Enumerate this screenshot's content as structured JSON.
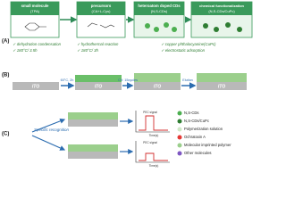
{
  "panel_a": {
    "label": "(A)",
    "steps": [
      {
        "title": "small molecule",
        "subtitle": "(TPA)"
      },
      {
        "title": "precursors",
        "subtitle": "(CA+L-Cys)"
      },
      {
        "title": "heteroatom doped CDs",
        "subtitle": "(N,S-CDs)"
      },
      {
        "title": "chemical functionalization",
        "subtitle": "(N,S-CDs/CuPc)"
      }
    ],
    "notes": [
      "✓ dehydration condensation",
      "✓ 180°C/ 3.5h",
      "✓ hydrothermal reaction",
      "✓ 180°C/ 3h",
      "✓ copper phthalocyanine(CuPc)",
      "✓ electrostatic adsorption"
    ]
  },
  "panel_b": {
    "label": "(B)",
    "electrode": "ITO",
    "conditions": [
      "60°C, 2h",
      "CV: 15cycles",
      "Elution"
    ]
  },
  "panel_c": {
    "label": "(C)",
    "recognition": "Specific recognition",
    "y_axis": "PEC signal",
    "x_axis": "Time(s)",
    "legend": [
      "N,S-CDs",
      "N,S-CDs/CuPc",
      "Polymerization solution",
      "Ochratoxin A",
      "Molecular imprinted polymer",
      "Other molecules"
    ]
  }
}
